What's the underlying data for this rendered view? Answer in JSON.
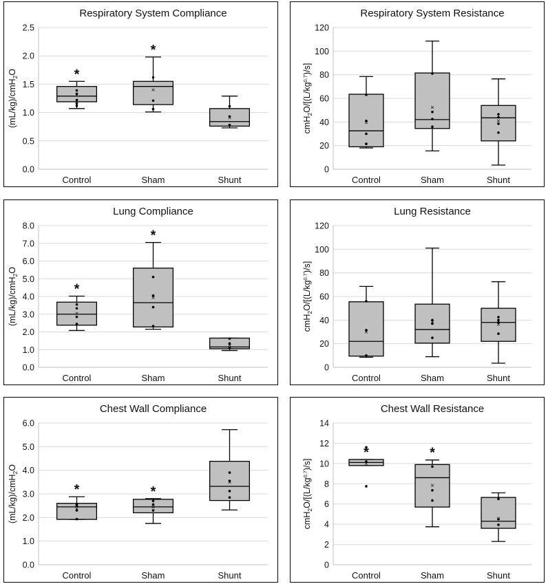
{
  "chart_data": [
    {
      "type": "box",
      "title": "Respiratory System Compliance",
      "ylabel": {
        "pre": "(mL/kg)/cmH",
        "sub": "2",
        "post": "O"
      },
      "ylim": [
        0,
        2.5
      ],
      "yticks": [
        0.0,
        0.5,
        1.0,
        1.5,
        2.0,
        2.5
      ],
      "decimals": 1,
      "categories": [
        "Control",
        "Sham",
        "Shunt"
      ],
      "boxes": [
        {
          "min": 1.07,
          "q1": 1.19,
          "median": 1.29,
          "q3": 1.46,
          "max": 1.55,
          "mean": 1.31,
          "points": [
            1.12,
            1.16,
            1.22,
            1.33,
            1.39
          ],
          "star": "*"
        },
        {
          "min": 1.01,
          "q1": 1.14,
          "median": 1.46,
          "q3": 1.55,
          "max": 1.98,
          "mean": 1.4,
          "points": [
            1.06,
            1.21,
            1.62
          ],
          "star": "*"
        },
        {
          "min": 0.73,
          "q1": 0.76,
          "median": 0.84,
          "q3": 1.07,
          "max": 1.29,
          "mean": 0.91,
          "points": [
            0.78,
            0.93,
            1.11
          ],
          "star": ""
        }
      ]
    },
    {
      "type": "box",
      "title": "Respiratory System Resistance",
      "ylabel": {
        "pre": "cmH",
        "sub": "2",
        "mid": "O/[(L/kg",
        "sup": "0.7",
        "post": ")/s]"
      },
      "ylim": [
        0,
        120
      ],
      "yticks": [
        0,
        20,
        40,
        60,
        80,
        100,
        120
      ],
      "decimals": 0,
      "categories": [
        "Control",
        "Sham",
        "Shunt"
      ],
      "boxes": [
        {
          "min": 18,
          "q1": 19,
          "median": 32.5,
          "q3": 63.5,
          "max": 78.5,
          "mean": 39.5,
          "points": [
            21.5,
            30,
            41,
            63
          ],
          "star": ""
        },
        {
          "min": 15.5,
          "q1": 34.5,
          "median": 42,
          "q3": 81.5,
          "max": 108.5,
          "mean": 52.5,
          "points": [
            36,
            42.5,
            48.5,
            81
          ],
          "star": ""
        },
        {
          "min": 3.5,
          "q1": 24,
          "median": 43.5,
          "q3": 54,
          "max": 76.5,
          "mean": 41,
          "points": [
            31,
            38.5,
            44,
            46.5
          ],
          "star": ""
        }
      ]
    },
    {
      "type": "box",
      "title": "Lung Compliance",
      "ylabel": {
        "pre": "(mL/kg)/cmH",
        "sub": "2",
        "post": "O"
      },
      "ylim": [
        0,
        8.0
      ],
      "yticks": [
        0.0,
        1.0,
        2.0,
        3.0,
        4.0,
        5.0,
        6.0,
        7.0,
        8.0
      ],
      "decimals": 1,
      "categories": [
        "Control",
        "Sham",
        "Shunt"
      ],
      "boxes": [
        {
          "min": 2.08,
          "q1": 2.38,
          "median": 3.0,
          "q3": 3.68,
          "max": 4.02,
          "mean": 3.05,
          "points": [
            2.45,
            2.85,
            3.33,
            3.55
          ],
          "star": "*"
        },
        {
          "min": 2.15,
          "q1": 2.28,
          "median": 3.65,
          "q3": 5.6,
          "max": 7.05,
          "mean": 3.95,
          "points": [
            2.33,
            3.4,
            4.05,
            5.1
          ],
          "star": "*"
        },
        {
          "min": 0.95,
          "q1": 1.05,
          "median": 1.15,
          "q3": 1.65,
          "max": 1.65,
          "mean": 1.25,
          "points": [
            1.1,
            1.35,
            1.62
          ],
          "star": ""
        }
      ]
    },
    {
      "type": "box",
      "title": "Lung Resistance",
      "ylabel": {
        "pre": "cmH",
        "sub": "2",
        "mid": "O/[(L/kg",
        "sup": "0.7",
        "post": ")/s]"
      },
      "ylim": [
        0,
        120
      ],
      "yticks": [
        0,
        20,
        40,
        60,
        80,
        100,
        120
      ],
      "decimals": 0,
      "categories": [
        "Control",
        "Sham",
        "Shunt"
      ],
      "boxes": [
        {
          "min": 8.5,
          "q1": 9.5,
          "median": 22,
          "q3": 55.5,
          "max": 68.5,
          "mean": 30,
          "points": [
            10,
            31.5,
            56
          ],
          "star": ""
        },
        {
          "min": 9,
          "q1": 20.5,
          "median": 32,
          "q3": 53.5,
          "max": 101,
          "mean": 38.5,
          "points": [
            25,
            37,
            40
          ],
          "star": ""
        },
        {
          "min": 3.5,
          "q1": 22,
          "median": 38,
          "q3": 50,
          "max": 72.5,
          "mean": 36.5,
          "points": [
            28.5,
            38,
            40,
            42.5
          ],
          "star": ""
        }
      ]
    },
    {
      "type": "box",
      "title": "Chest Wall Compliance",
      "ylabel": {
        "pre": "(mL/kg)/cmH",
        "sub": "2",
        "post": "O"
      },
      "ylim": [
        0,
        6.0
      ],
      "yticks": [
        0.0,
        1.0,
        2.0,
        3.0,
        4.0,
        5.0,
        6.0
      ],
      "decimals": 1,
      "categories": [
        "Control",
        "Sham",
        "Shunt"
      ],
      "boxes": [
        {
          "min": 1.92,
          "q1": 1.92,
          "median": 2.45,
          "q3": 2.6,
          "max": 2.88,
          "mean": 2.38,
          "points": [
            1.93,
            2.3,
            2.5,
            2.55
          ],
          "star": "*"
        },
        {
          "min": 1.75,
          "q1": 2.2,
          "median": 2.45,
          "q3": 2.77,
          "max": 2.8,
          "mean": 2.45,
          "points": [
            2.3,
            2.55,
            2.7
          ],
          "star": "*"
        },
        {
          "min": 2.32,
          "q1": 2.72,
          "median": 3.32,
          "q3": 4.38,
          "max": 5.72,
          "mean": 3.5,
          "points": [
            2.85,
            3.12,
            3.55,
            3.9
          ],
          "star": ""
        }
      ]
    },
    {
      "type": "box",
      "title": "Chest Wall Resistance",
      "ylabel": {
        "pre": "cmH",
        "sub": "2",
        "mid": "O/[(L/kg",
        "sup": "0.7",
        "post": ")/s]"
      },
      "ylim": [
        0,
        14
      ],
      "yticks": [
        0,
        2,
        4,
        6,
        8,
        10,
        12,
        14
      ],
      "decimals": 0,
      "categories": [
        "Control",
        "Sham",
        "Shunt"
      ],
      "boxes": [
        {
          "min": 9.8,
          "q1": 9.8,
          "median": 10.1,
          "q3": 10.4,
          "max": 10.4,
          "mean": 10.0,
          "points": [
            7.75,
            10.2,
            11.6
          ],
          "star": "*"
        },
        {
          "min": 3.75,
          "q1": 5.7,
          "median": 8.6,
          "q3": 9.9,
          "max": 10.35,
          "mean": 7.85,
          "points": [
            6.35,
            7.35,
            9.7
          ],
          "star": "*"
        },
        {
          "min": 2.3,
          "q1": 3.6,
          "median": 4.3,
          "q3": 6.65,
          "max": 7.1,
          "mean": 4.6,
          "points": [
            3.95,
            4.5,
            6.5
          ],
          "star": ""
        }
      ]
    }
  ]
}
